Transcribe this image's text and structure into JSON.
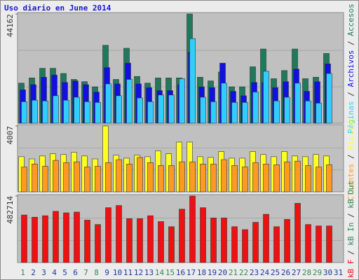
{
  "title": "Uso diario en June 2014",
  "legend_separator": " / ",
  "categories": [
    "1",
    "2",
    "3",
    "4",
    "5",
    "6",
    "7",
    "8",
    "9",
    "10",
    "11",
    "12",
    "13",
    "14",
    "15",
    "16",
    "17",
    "18",
    "19",
    "20",
    "21",
    "22",
    "23",
    "24",
    "25",
    "26",
    "27",
    "28",
    "29",
    "30",
    "31"
  ],
  "category_colors": [
    "#2e8b57",
    "#1a3aa0",
    "#1a3aa0",
    "#1a3aa0",
    "#1a3aa0",
    "#1a3aa0",
    "#2e8b57",
    "#2e8b57",
    "#1a3aa0",
    "#1a3aa0",
    "#1a3aa0",
    "#1a3aa0",
    "#1a3aa0",
    "#2e8b57",
    "#2e8b57",
    "#1a3aa0",
    "#1a3aa0",
    "#1a3aa0",
    "#1a3aa0",
    "#1a3aa0",
    "#2e8b57",
    "#2e8b57",
    "#1a3aa0",
    "#1a3aa0",
    "#1a3aa0",
    "#1a3aa0",
    "#1a3aa0",
    "#2e8b57",
    "#2e8b57",
    "#1a3aa0",
    "#1a3aa0"
  ],
  "chart_data": [
    {
      "type": "bar",
      "ylim": [
        0,
        44162
      ],
      "yticks": [
        44162
      ],
      "series": [
        {
          "name": "Páginas",
          "color": "#33ccff",
          "values": [
            8700,
            9300,
            9000,
            11100,
            9300,
            10500,
            8700,
            8400,
            15900,
            11100,
            17700,
            10200,
            8700,
            11400,
            11400,
            18000,
            34200,
            10500,
            8700,
            16200,
            8400,
            8400,
            12600,
            21000,
            9000,
            10500,
            16200,
            9000,
            8100,
            20100,
            null
          ]
        },
        {
          "name": "Archivos",
          "color": "#1010e0",
          "values": [
            13500,
            15600,
            18600,
            19500,
            16500,
            17100,
            15600,
            12600,
            22500,
            15900,
            24300,
            15900,
            14400,
            13200,
            13200,
            15600,
            28800,
            14700,
            14400,
            24300,
            12900,
            11100,
            16500,
            16500,
            14400,
            16800,
            21900,
            12900,
            16800,
            24000,
            null
          ]
        },
        {
          "name": "Accesos",
          "color": "#1f7a5c",
          "values": [
            16200,
            18300,
            22200,
            22200,
            20100,
            17700,
            16800,
            14700,
            31500,
            17700,
            30300,
            18900,
            16200,
            18300,
            18300,
            18300,
            44162,
            18600,
            17100,
            20700,
            14700,
            14700,
            22800,
            30000,
            18000,
            21300,
            30000,
            18000,
            18600,
            28200,
            null
          ]
        }
      ]
    },
    {
      "type": "bar",
      "ylim": [
        0,
        4007
      ],
      "yticks": [
        4007
      ],
      "series": [
        {
          "name": "Clientes",
          "color": "#ff9922",
          "values": [
            1513,
            1691,
            1558,
            1914,
            1780,
            1825,
            1513,
            1558,
            1780,
            1958,
            1691,
            2092,
            1780,
            1602,
            1602,
            1825,
            1825,
            1691,
            1691,
            1958,
            1602,
            1513,
            1780,
            1691,
            1647,
            1825,
            1869,
            1602,
            1513,
            1647,
            null
          ]
        },
        {
          "name": "Visitas",
          "color": "#ffff22",
          "values": [
            2137,
            2003,
            2181,
            2315,
            2270,
            2404,
            2181,
            2003,
            4007,
            2226,
            2048,
            2226,
            2137,
            2493,
            2315,
            3027,
            3027,
            2137,
            2092,
            2448,
            2048,
            2048,
            2448,
            2270,
            2137,
            2448,
            2181,
            2137,
            2270,
            2181,
            null
          ]
        }
      ]
    },
    {
      "type": "bar",
      "ylim": [
        0,
        482714
      ],
      "yticks": [
        482714
      ],
      "series": [
        {
          "name": "kB F",
          "color": "#ee1111",
          "values": [
            344800,
            328900,
            339500,
            371400,
            360700,
            366000,
            307700,
            275900,
            397900,
            413800,
            318300,
            318300,
            339500,
            297100,
            260000,
            387300,
            482714,
            397900,
            323600,
            323600,
            260000,
            238700,
            291800,
            350100,
            260000,
            313000,
            429700,
            275900,
            265300,
            265300,
            null
          ]
        },
        {
          "name": "kB In",
          "color": "#2e8b57",
          "values": [
            null,
            null,
            null,
            null,
            null,
            null,
            null,
            null,
            null,
            null,
            null,
            null,
            null,
            null,
            null,
            null,
            null,
            null,
            null,
            null,
            null,
            null,
            null,
            null,
            null,
            null,
            null,
            null,
            null,
            null,
            null
          ]
        },
        {
          "name": "kB Out",
          "color": "#2e8b57",
          "values": [
            null,
            null,
            null,
            null,
            null,
            null,
            null,
            null,
            null,
            null,
            null,
            null,
            null,
            null,
            null,
            null,
            null,
            null,
            null,
            null,
            null,
            null,
            null,
            null,
            null,
            null,
            null,
            null,
            null,
            null,
            null
          ]
        }
      ]
    }
  ]
}
